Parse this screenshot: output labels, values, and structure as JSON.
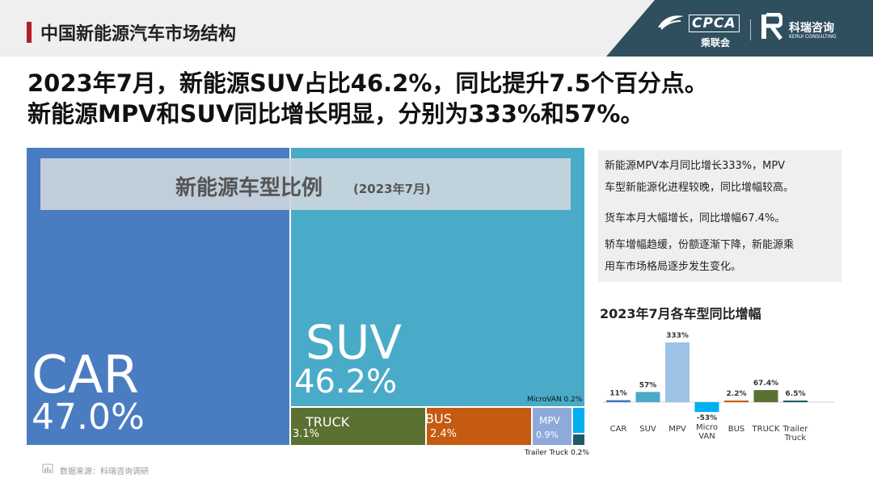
{
  "header": {
    "title": "中国新能源汽车市场结构",
    "logo_cpca_text": "CPCA",
    "logo_cpca_cn": "乘联会",
    "logo_kr_cn": "科瑞咨询",
    "logo_kr_en": "KERUI CONSULTING"
  },
  "headline": {
    "line1": "2023年7月，新能源SUV占比46.2%，同比提升7.5个百分点。",
    "line2": "新能源MPV和SUV同比增长明显，分别为333%和57%。"
  },
  "notes": {
    "items": [
      "新能源MPV本月同比增长333%，MPV",
      "车型新能源化进程较晚，同比增幅较高。",
      "货车本月大幅增长，同比增幅67.4%。",
      "轿车增幅趋缓，份额逐渐下降，新能源乘",
      "用车市场格局逐步发生变化。"
    ]
  },
  "source": "数据来源：科瑞咨询调研",
  "chart_data": [
    {
      "type": "treemap",
      "title": "新能源车型比例",
      "subtitle": "(2023年7月)",
      "items": [
        {
          "name": "CAR",
          "display": "CAR",
          "value": 47.0,
          "value_label": "47.0%",
          "color": "#4a7cc2"
        },
        {
          "name": "SUV",
          "display": "SUV",
          "value": 46.2,
          "value_label": "46.2%",
          "color": "#4aabc8"
        },
        {
          "name": "TRUCK",
          "display": "TRUCK",
          "value": 3.1,
          "value_label": "3.1%",
          "color": "#5b7131"
        },
        {
          "name": "BUS",
          "display": "BUS",
          "value": 2.4,
          "value_label": "2.4%",
          "color": "#c55a11"
        },
        {
          "name": "MPV",
          "display": "MPV",
          "value": 0.9,
          "value_label": "0.9%",
          "color": "#8eaadb"
        },
        {
          "name": "MicroVAN",
          "display": "MicroVAN 0.2%",
          "value": 0.2,
          "color": "#00b0f0"
        },
        {
          "name": "Trailer Truck",
          "display": "Trailer Truck 0.2%",
          "value": 0.2,
          "color": "#1f5a6b"
        }
      ]
    },
    {
      "type": "bar",
      "title": "2023年7月各车型同比增幅",
      "categories": [
        "CAR",
        "SUV",
        "MPV",
        "Micro VAN",
        "BUS",
        "TRUCK",
        "Trailer Truck"
      ],
      "values": [
        11,
        57,
        333,
        -53,
        2.2,
        67.4,
        6.5
      ],
      "value_labels": [
        "11%",
        "57%",
        "333%",
        "-53%",
        "2.2%",
        "67.4%",
        "6.5%"
      ],
      "colors": [
        "#4472c4",
        "#4aabc8",
        "#9dc3e6",
        "#00b0f0",
        "#c55a11",
        "#5b7131",
        "#1f5a6b"
      ]
    }
  ]
}
